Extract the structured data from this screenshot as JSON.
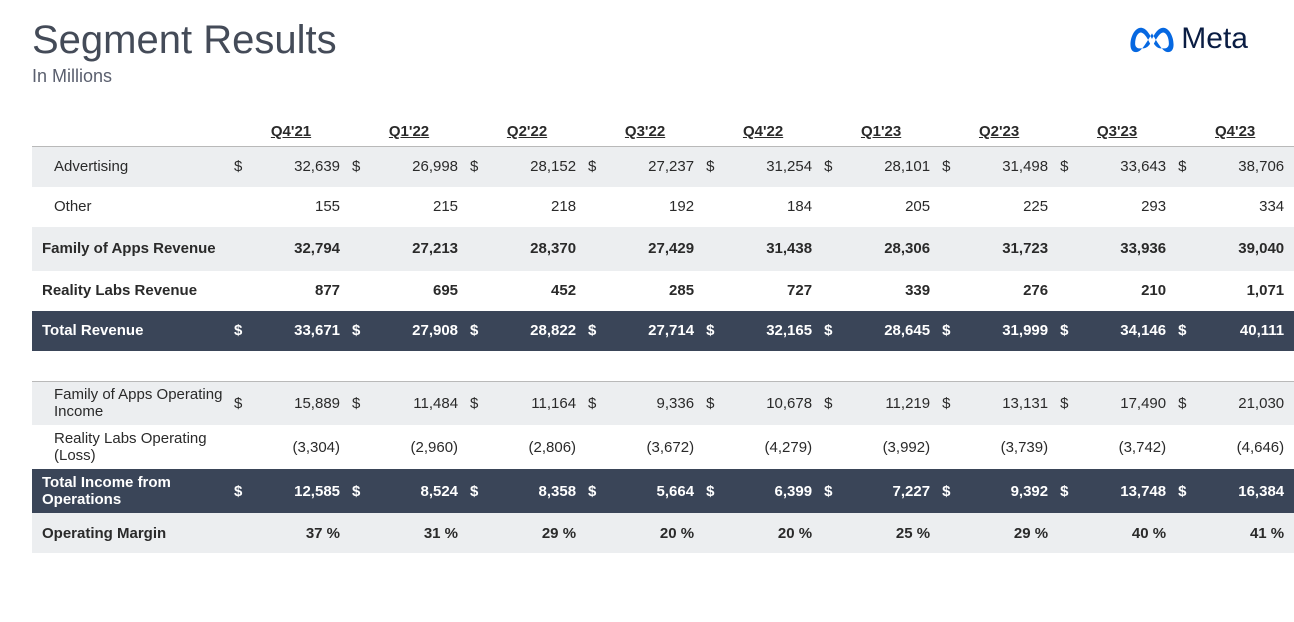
{
  "header": {
    "title": "Segment Results",
    "subtitle": "In Millions",
    "brand": "Meta"
  },
  "brand_color": "#0668E1",
  "periods": [
    "Q4'21",
    "Q1'22",
    "Q2'22",
    "Q3'22",
    "Q4'22",
    "Q1'23",
    "Q2'23",
    "Q3'23",
    "Q4'23"
  ],
  "colors": {
    "stripe": "#eceef0",
    "dark_bg": "#3a4558",
    "dark_text": "#ffffff",
    "title_color": "#444b58",
    "border": "#b9b9b9"
  },
  "rows": [
    {
      "key": "advertising",
      "label": "Advertising",
      "indent": true,
      "style": "stripe",
      "currency": true,
      "top_border": true,
      "values": [
        "32,639",
        "26,998",
        "28,152",
        "27,237",
        "31,254",
        "28,101",
        "31,498",
        "33,643",
        "38,706"
      ]
    },
    {
      "key": "other",
      "label": "Other",
      "indent": true,
      "style": "plain",
      "currency": false,
      "values": [
        "155",
        "215",
        "218",
        "192",
        "184",
        "205",
        "225",
        "293",
        "334"
      ]
    },
    {
      "key": "foa-revenue",
      "label": "Family of Apps Revenue",
      "indent": false,
      "style": "stripe bold",
      "currency": false,
      "tall": true,
      "values": [
        "32,794",
        "27,213",
        "28,370",
        "27,429",
        "31,438",
        "28,306",
        "31,723",
        "33,936",
        "39,040"
      ]
    },
    {
      "key": "rl-revenue",
      "label": "Reality Labs Revenue",
      "indent": false,
      "style": "plain bold",
      "currency": false,
      "values": [
        "877",
        "695",
        "452",
        "285",
        "727",
        "339",
        "276",
        "210",
        "1,071"
      ]
    },
    {
      "key": "total-revenue",
      "label": "Total Revenue",
      "indent": false,
      "style": "dark",
      "currency": true,
      "values": [
        "33,671",
        "27,908",
        "28,822",
        "27,714",
        "32,165",
        "28,645",
        "31,999",
        "34,146",
        "40,111"
      ]
    },
    {
      "key": "gap",
      "style": "gap"
    },
    {
      "key": "foa-opinc",
      "label": "Family of Apps Operating Income",
      "indent": true,
      "style": "stripe",
      "currency": true,
      "top_border": true,
      "tall": true,
      "values": [
        "15,889",
        "11,484",
        "11,164",
        "9,336",
        "10,678",
        "11,219",
        "13,131",
        "17,490",
        "21,030"
      ]
    },
    {
      "key": "rl-oploss",
      "label": "Reality Labs Operating (Loss)",
      "indent": true,
      "style": "plain",
      "currency": false,
      "tall": true,
      "values": [
        "(3,304)",
        "(2,960)",
        "(2,806)",
        "(3,672)",
        "(4,279)",
        "(3,992)",
        "(3,739)",
        "(3,742)",
        "(4,646)"
      ]
    },
    {
      "key": "total-opinc",
      "label": "Total Income from Operations",
      "indent": false,
      "style": "dark",
      "currency": true,
      "tall": true,
      "values": [
        "12,585",
        "8,524",
        "8,358",
        "5,664",
        "6,399",
        "7,227",
        "9,392",
        "13,748",
        "16,384"
      ]
    },
    {
      "key": "op-margin",
      "label": "Operating Margin",
      "indent": false,
      "style": "stripe bold",
      "currency": false,
      "values": [
        "37 %",
        "31 %",
        "29 %",
        "20 %",
        "20 %",
        "25 %",
        "29 %",
        "40 %",
        "41 %"
      ]
    }
  ]
}
